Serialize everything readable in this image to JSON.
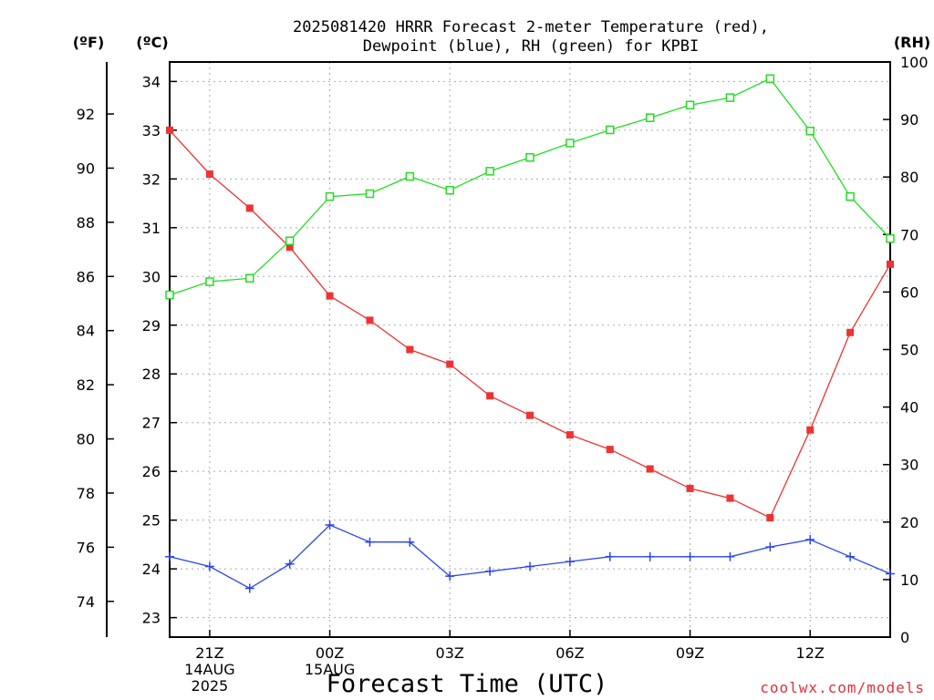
{
  "chart_data": {
    "type": "line",
    "title_lines": [
      "2025081420 HRRR Forecast 2-meter Temperature (red),",
      "Dewpoint (blue), RH (green) for KPBI"
    ],
    "xlabel": "Forecast Time (UTC)",
    "left_outer_unit": "(ºF)",
    "left_inner_unit": "(ºC)",
    "right_unit": "(RH)",
    "credit": "coolwx.com/models",
    "x_hours": [
      20,
      21,
      22,
      23,
      24,
      25,
      26,
      27,
      28,
      29,
      30,
      31,
      32,
      33,
      34,
      35,
      36,
      37,
      38
    ],
    "x_ticks": [
      {
        "hour": 21,
        "lines": [
          "21Z",
          "14AUG",
          "2025"
        ]
      },
      {
        "hour": 24,
        "lines": [
          "00Z",
          "15AUG"
        ]
      },
      {
        "hour": 27,
        "lines": [
          "03Z"
        ]
      },
      {
        "hour": 30,
        "lines": [
          "06Z"
        ]
      },
      {
        "hour": 33,
        "lines": [
          "09Z"
        ]
      },
      {
        "hour": 36,
        "lines": [
          "12Z"
        ]
      }
    ],
    "xlim": [
      20,
      38
    ],
    "celsius_ylim": [
      22.6,
      34.4
    ],
    "celsius_ticks": [
      "23",
      "24",
      "25",
      "26",
      "27",
      "28",
      "29",
      "30",
      "31",
      "32",
      "33",
      "34"
    ],
    "fahrenheit_ticks": [
      "74",
      "76",
      "78",
      "80",
      "82",
      "84",
      "86",
      "88",
      "90",
      "92"
    ],
    "rh_ylim": [
      0,
      100
    ],
    "rh_ticks": [
      "0",
      "10",
      "20",
      "30",
      "40",
      "50",
      "60",
      "70",
      "80",
      "90",
      "100"
    ],
    "grid": true,
    "series": [
      {
        "name": "Temperature",
        "color": "#ee3333",
        "marker": "filled-square",
        "axis": "celsius",
        "values": [
          33.0,
          32.1,
          31.4,
          30.6,
          29.6,
          29.1,
          28.5,
          28.2,
          27.55,
          27.15,
          26.75,
          26.45,
          26.05,
          25.65,
          25.45,
          25.05,
          26.85,
          28.85,
          30.25
        ]
      },
      {
        "name": "Dewpoint",
        "color": "#2a46e8",
        "marker": "plus",
        "axis": "celsius",
        "values": [
          24.25,
          24.05,
          23.6,
          24.1,
          24.9,
          24.55,
          24.55,
          23.85,
          23.95,
          24.05,
          24.15,
          24.25,
          24.25,
          24.25,
          24.25,
          24.45,
          24.6,
          24.25,
          23.9
        ]
      },
      {
        "name": "RH",
        "color": "#22dd22",
        "marker": "open-square",
        "axis": "rh",
        "values": [
          59.5,
          61.8,
          62.4,
          68.9,
          76.6,
          77.1,
          80.1,
          77.7,
          81.0,
          83.4,
          85.9,
          88.2,
          90.3,
          92.5,
          93.8,
          97.1,
          88.0,
          76.6,
          69.3
        ]
      }
    ]
  }
}
